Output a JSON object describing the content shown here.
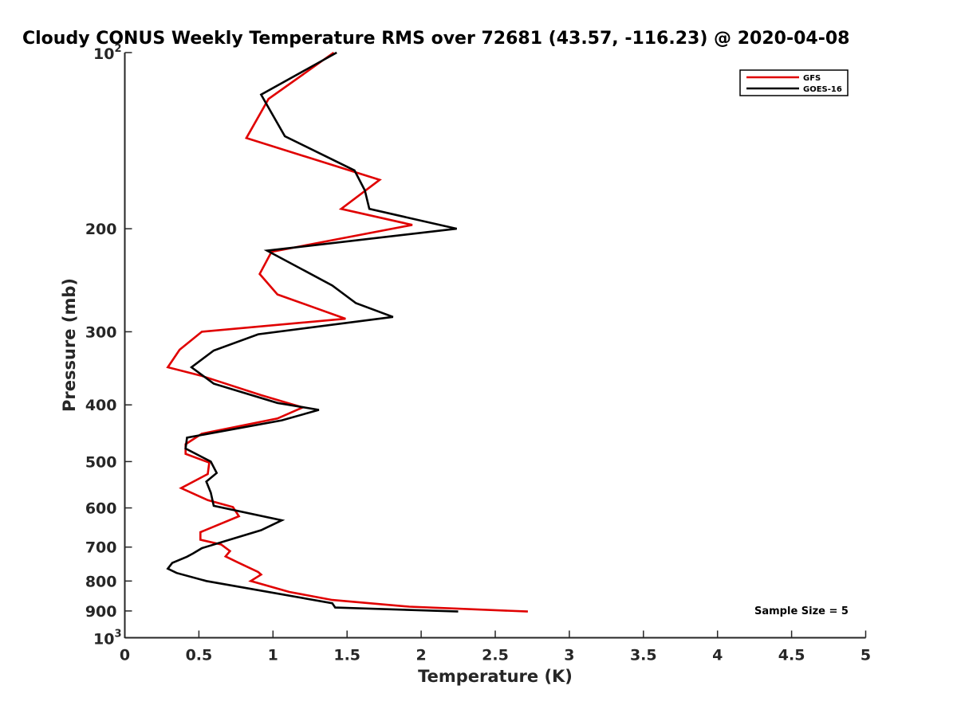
{
  "chart_data": {
    "type": "line",
    "title": "Cloudy CONUS Weekly Temperature RMS over 72681 (43.57, -116.23) @ 2020-04-08",
    "xlabel": "Temperature (K)",
    "ylabel": "Pressure (mb)",
    "xlim": [
      0,
      5
    ],
    "ylim": [
      100,
      1000
    ],
    "y_scale": "log",
    "y_reversed": true,
    "grid": false,
    "legend_position": "top-right",
    "x_ticks": [
      "0",
      "0.5",
      "1",
      "1.5",
      "2",
      "2.5",
      "3",
      "3.5",
      "4",
      "4.5",
      "5"
    ],
    "y_ticks": [
      {
        "value": 200,
        "label": "200"
      },
      {
        "value": 300,
        "label": "300"
      },
      {
        "value": 400,
        "label": "400"
      },
      {
        "value": 500,
        "label": "500"
      },
      {
        "value": 600,
        "label": "600"
      },
      {
        "value": 700,
        "label": "700"
      },
      {
        "value": 800,
        "label": "800"
      },
      {
        "value": 900,
        "label": "900"
      }
    ],
    "y_ticks_pow": [
      {
        "value": 100,
        "base": "10",
        "exp": "2"
      },
      {
        "value": 1000,
        "base": "10",
        "exp": "3"
      }
    ],
    "series": [
      {
        "name": "GFS",
        "color": "#e00000",
        "points": [
          [
            1.41,
            100
          ],
          [
            0.97,
            120
          ],
          [
            0.82,
            140
          ],
          [
            1.72,
            165
          ],
          [
            1.46,
            185
          ],
          [
            1.94,
            197
          ],
          [
            0.99,
            219
          ],
          [
            0.91,
            239
          ],
          [
            1.03,
            259
          ],
          [
            1.49,
            285
          ],
          [
            0.52,
            300
          ],
          [
            0.37,
            322
          ],
          [
            0.29,
            345
          ],
          [
            0.52,
            357
          ],
          [
            0.92,
            385
          ],
          [
            1.2,
            404
          ],
          [
            1.03,
            422
          ],
          [
            0.52,
            448
          ],
          [
            0.41,
            467
          ],
          [
            0.41,
            485
          ],
          [
            0.57,
            502
          ],
          [
            0.56,
            525
          ],
          [
            0.38,
            555
          ],
          [
            0.56,
            582
          ],
          [
            0.73,
            598
          ],
          [
            0.77,
            620
          ],
          [
            0.51,
            660
          ],
          [
            0.51,
            680
          ],
          [
            0.65,
            693
          ],
          [
            0.71,
            711
          ],
          [
            0.68,
            726
          ],
          [
            0.76,
            743
          ],
          [
            0.9,
            772
          ],
          [
            0.92,
            780
          ],
          [
            0.85,
            800
          ],
          [
            1.11,
            835
          ],
          [
            1.4,
            862
          ],
          [
            1.92,
            885
          ],
          [
            2.72,
            902
          ]
        ]
      },
      {
        "name": "GOES-16",
        "color": "#000000",
        "points": [
          [
            1.43,
            100
          ],
          [
            0.92,
            118
          ],
          [
            1.08,
            139
          ],
          [
            1.55,
            159
          ],
          [
            1.62,
            172
          ],
          [
            1.65,
            185
          ],
          [
            2.24,
            200
          ],
          [
            0.96,
            218
          ],
          [
            1.4,
            250
          ],
          [
            1.56,
            268
          ],
          [
            1.81,
            283
          ],
          [
            0.9,
            303
          ],
          [
            0.6,
            323
          ],
          [
            0.45,
            345
          ],
          [
            0.6,
            368
          ],
          [
            1.03,
            397
          ],
          [
            1.31,
            408
          ],
          [
            1.06,
            425
          ],
          [
            0.42,
            455
          ],
          [
            0.41,
            475
          ],
          [
            0.58,
            500
          ],
          [
            0.62,
            523
          ],
          [
            0.55,
            541
          ],
          [
            0.58,
            565
          ],
          [
            0.6,
            595
          ],
          [
            1.06,
            630
          ],
          [
            0.92,
            655
          ],
          [
            0.7,
            681
          ],
          [
            0.52,
            703
          ],
          [
            0.46,
            718
          ],
          [
            0.42,
            727
          ],
          [
            0.32,
            745
          ],
          [
            0.29,
            762
          ],
          [
            0.35,
            775
          ],
          [
            0.55,
            800
          ],
          [
            1.4,
            873
          ],
          [
            1.42,
            888
          ],
          [
            2.25,
            902
          ]
        ]
      }
    ],
    "annotations": [
      {
        "text": "Sample Size = 5",
        "position": "bottom-right"
      }
    ]
  }
}
